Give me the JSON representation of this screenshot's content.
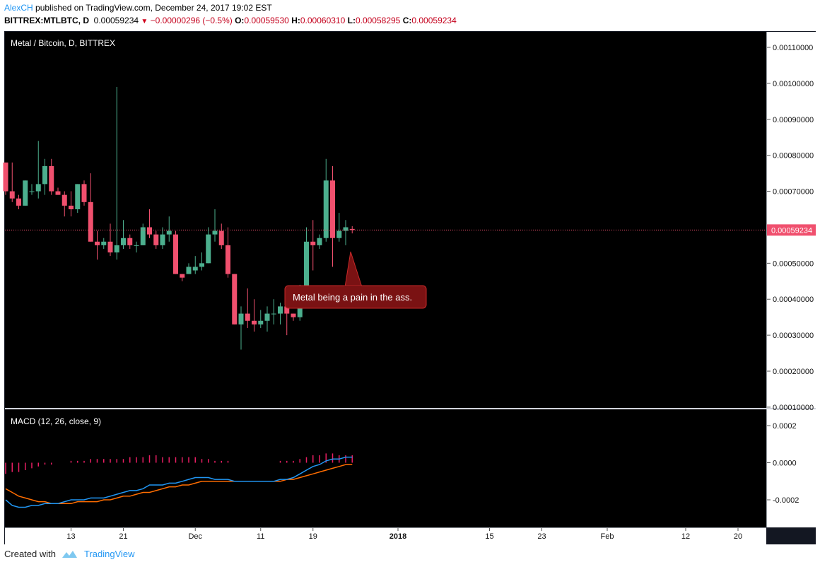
{
  "header": {
    "author": "AlexCH",
    "published_text": " published on TradingView.com, December 24, 2017 19:02 EST",
    "symbol": "BITTREX:MTLBTC, D",
    "last": "0.00059234",
    "change": "−0.00000296 (−0.5%)",
    "o_label": "O:",
    "o_value": "0.00059530",
    "h_label": "H:",
    "h_value": "0.00060310",
    "l_label": "L:",
    "l_value": "0.00058295",
    "c_label": "C:",
    "c_value": "0.00059234"
  },
  "pane_title": "Metal / Bitcoin, D, BITTREX",
  "macd_title": "MACD (12, 26, close, 9)",
  "annotation": "Metal being a pain in the ass.",
  "price_badge": "0.00059234",
  "footer": {
    "created_with": "Created with",
    "brand": "TradingView"
  },
  "colors": {
    "up": "#4caf8e",
    "down": "#f0506e",
    "macd": "#2196f3",
    "signal": "#ff6d00",
    "hist": "#e91e63",
    "badge": "#f0506e",
    "author": "#2196f3"
  },
  "chart_data": [
    {
      "type": "candlestick",
      "title": "Metal / Bitcoin, D, BITTREX",
      "xlabel": "",
      "ylabel": "",
      "x_ticks": [
        "13",
        "21",
        "Dec",
        "11",
        "19",
        "2018",
        "15",
        "23",
        "Feb",
        "12",
        "20"
      ],
      "y_ticks": [
        "0.00110000",
        "0.00100000",
        "0.00090000",
        "0.00080000",
        "0.00070000",
        "0.00060000",
        "0.00050000",
        "0.00040000",
        "0.00030000",
        "0.00020000",
        "0.00010000"
      ],
      "ylim": [
        0.0001,
        0.00115
      ],
      "last_price": 0.00059234,
      "grid": false,
      "candles": [
        [
          0.00078,
          0.00078,
          0.00069,
          0.0007
        ],
        [
          0.0007,
          0.00078,
          0.00067,
          0.00068
        ],
        [
          0.00068,
          0.00069,
          0.00065,
          0.00066
        ],
        [
          0.00066,
          0.00073,
          0.00066,
          0.00073
        ],
        [
          0.0007,
          0.00072,
          0.00069,
          0.0007
        ],
        [
          0.0007,
          0.00084,
          0.00068,
          0.00072
        ],
        [
          0.00072,
          0.00079,
          0.00069,
          0.00077
        ],
        [
          0.00077,
          0.00079,
          0.00069,
          0.0007
        ],
        [
          0.0007,
          0.00071,
          0.00069,
          0.00069
        ],
        [
          0.00069,
          0.0007,
          0.00063,
          0.00066
        ],
        [
          0.00066,
          0.0007,
          0.00063,
          0.00065
        ],
        [
          0.00065,
          0.00072,
          0.00064,
          0.00072
        ],
        [
          0.00072,
          0.00073,
          0.00066,
          0.00067
        ],
        [
          0.00067,
          0.00075,
          0.00056,
          0.00056
        ],
        [
          0.00056,
          0.00059,
          0.00051,
          0.00055
        ],
        [
          0.00055,
          0.00057,
          0.00054,
          0.00056
        ],
        [
          0.00056,
          0.00061,
          0.00052,
          0.00053
        ],
        [
          0.00053,
          0.00099,
          0.00051,
          0.00055
        ],
        [
          0.00055,
          0.00062,
          0.00054,
          0.00057
        ],
        [
          0.00057,
          0.00058,
          0.00054,
          0.00055
        ],
        [
          0.00055,
          0.00056,
          0.00053,
          0.00055
        ],
        [
          0.00055,
          0.00061,
          0.00055,
          0.0006
        ],
        [
          0.0006,
          0.00065,
          0.00057,
          0.00058
        ],
        [
          0.00058,
          0.00059,
          0.00054,
          0.00055
        ],
        [
          0.00055,
          0.0006,
          0.00054,
          0.00058
        ],
        [
          0.00058,
          0.00063,
          0.00056,
          0.00059
        ],
        [
          0.00058,
          0.00059,
          0.00047,
          0.00047
        ],
        [
          0.00047,
          0.00047,
          0.00045,
          0.00046
        ],
        [
          0.00047,
          0.0005,
          0.00047,
          0.00049
        ],
        [
          0.00048,
          0.00052,
          0.00047,
          0.00049
        ],
        [
          0.00049,
          0.00053,
          0.00048,
          0.0005
        ],
        [
          0.0005,
          0.0006,
          0.0005,
          0.00058
        ],
        [
          0.00058,
          0.00065,
          0.00056,
          0.00059
        ],
        [
          0.00059,
          0.00061,
          0.00054,
          0.00055
        ],
        [
          0.00055,
          0.0006,
          0.00046,
          0.00047
        ],
        [
          0.00047,
          0.00047,
          0.00033,
          0.00033
        ],
        [
          0.00033,
          0.00038,
          0.00026,
          0.00036
        ],
        [
          0.00036,
          0.00043,
          0.00032,
          0.00034
        ],
        [
          0.00034,
          0.0004,
          0.00031,
          0.00033
        ],
        [
          0.00033,
          0.00037,
          0.00032,
          0.00034
        ],
        [
          0.00034,
          0.00038,
          0.00031,
          0.00036
        ],
        [
          0.00036,
          0.0004,
          0.00033,
          0.00036
        ],
        [
          0.00036,
          0.00039,
          0.00033,
          0.00038
        ],
        [
          0.00038,
          0.0004,
          0.0003,
          0.00036
        ],
        [
          0.00036,
          0.00036,
          0.00034,
          0.00035
        ],
        [
          0.00035,
          0.00044,
          0.00034,
          0.00043
        ],
        [
          0.00043,
          0.0006,
          0.00043,
          0.00056
        ],
        [
          0.00056,
          0.00062,
          0.00048,
          0.00055
        ],
        [
          0.00055,
          0.00058,
          0.00054,
          0.00057
        ],
        [
          0.00057,
          0.00079,
          0.00056,
          0.00073
        ],
        [
          0.00073,
          0.00077,
          0.00049,
          0.00057
        ],
        [
          0.00057,
          0.00064,
          0.00056,
          0.00059
        ],
        [
          0.00059,
          0.00062,
          0.00055,
          0.0006
        ],
        [
          0.0005953,
          0.0006031,
          0.00058295,
          0.00059234
        ]
      ]
    },
    {
      "type": "line",
      "title": "MACD (12, 26, close, 9)",
      "xlabel": "",
      "ylabel": "",
      "y_ticks": [
        "0.0002",
        "0.0000",
        "-0.0002"
      ],
      "ylim": [
        -0.00035,
        0.00024
      ],
      "series": [
        {
          "values": [
            -0.0002,
            -0.00023,
            -0.00024,
            -0.00024,
            -0.00023,
            -0.00023,
            -0.00022,
            -0.00022,
            -0.00022,
            -0.00021,
            -0.0002,
            -0.0002,
            -0.0002,
            -0.00019,
            -0.00019,
            -0.00019,
            -0.00018,
            -0.00017,
            -0.00016,
            -0.00015,
            -0.00015,
            -0.00014,
            -0.00012,
            -0.00012,
            -0.00012,
            -0.00011,
            -0.00011,
            -0.0001,
            -9e-05,
            -8e-05,
            -8e-05,
            -8e-05,
            -9e-05,
            -9e-05,
            -9e-05,
            -0.0001,
            -0.0001,
            -0.0001,
            -0.0001,
            -0.0001,
            -0.0001,
            -0.0001,
            -9e-05,
            -9e-05,
            -8e-05,
            -6e-05,
            -4e-05,
            -2e-05,
            -1e-05,
            1e-05,
            2e-05,
            2e-05,
            3e-05,
            3e-05
          ]
        },
        {
          "values": [
            -0.00014,
            -0.00016,
            -0.00018,
            -0.00019,
            -0.0002,
            -0.00021,
            -0.00021,
            -0.00022,
            -0.00022,
            -0.00022,
            -0.00022,
            -0.00021,
            -0.00021,
            -0.00021,
            -0.00021,
            -0.0002,
            -0.0002,
            -0.00019,
            -0.00018,
            -0.00018,
            -0.00017,
            -0.00016,
            -0.00016,
            -0.00015,
            -0.00014,
            -0.00013,
            -0.00013,
            -0.00012,
            -0.00012,
            -0.00011,
            -0.0001,
            -0.0001,
            -0.0001,
            -0.0001,
            -0.0001,
            -0.0001,
            -0.0001,
            -0.0001,
            -0.0001,
            -0.0001,
            -0.0001,
            -0.0001,
            -0.0001,
            -9e-05,
            -9e-05,
            -8e-05,
            -7e-05,
            -6e-05,
            -5e-05,
            -4e-05,
            -3e-05,
            -2e-05,
            -1e-05,
            -1e-05
          ]
        },
        {
          "values": [
            -6e-05,
            -5e-05,
            -5e-05,
            -4e-05,
            -3e-05,
            -2e-05,
            -1e-05,
            -1e-05,
            0.0,
            0.0,
            1e-05,
            1e-05,
            1e-05,
            2e-05,
            2e-05,
            2e-05,
            2e-05,
            2e-05,
            2e-05,
            3e-05,
            3e-05,
            3e-05,
            4e-05,
            4e-05,
            3e-05,
            3e-05,
            3e-05,
            3e-05,
            3e-05,
            3e-05,
            2e-05,
            2e-05,
            1e-05,
            1e-05,
            1e-05,
            0.0,
            0.0,
            0.0,
            0.0,
            0.0,
            0.0,
            0.0,
            1e-05,
            1e-05,
            1e-05,
            2e-05,
            3e-05,
            4e-05,
            4e-05,
            5e-05,
            5e-05,
            4e-05,
            4e-05,
            4e-05
          ]
        }
      ]
    }
  ]
}
